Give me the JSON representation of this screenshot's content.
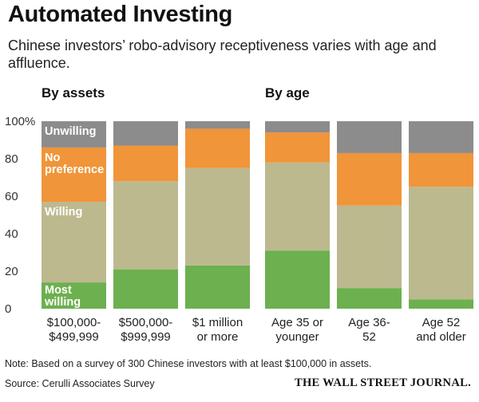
{
  "header": {
    "title": "Automated Investing",
    "subtitle": "Chinese investors’ robo-advisory receptiveness varies with age and affluence."
  },
  "panels": {
    "assets_title": "By assets",
    "age_title": "By age"
  },
  "footer": {
    "note": "Note: Based on a survey of 300 Chinese investors with at least $100,000 in assets.",
    "source": "Source: Cerulli Associates Survey",
    "brand": "THE WALL STREET JOURNAL."
  },
  "chart_data": {
    "type": "bar",
    "stacked": true,
    "ylim": [
      0,
      100
    ],
    "yticks": [
      "100%",
      "80",
      "60",
      "40",
      "20",
      "0"
    ],
    "ytick_values": [
      100,
      80,
      60,
      40,
      20,
      0
    ],
    "colors": {
      "Most willing": "#6cb04f",
      "Willing": "#bcb98f",
      "No preference": "#f0953a",
      "Unwilling": "#8c8c8c"
    },
    "segment_labels": [
      {
        "series": "Unwilling",
        "text": [
          "Unwilling"
        ],
        "color": "#ffffff"
      },
      {
        "series": "No preference",
        "text": [
          "No",
          "preference"
        ],
        "color": "#ffffff"
      },
      {
        "series": "Willing",
        "text": [
          "Willing"
        ],
        "color": "#ffffff"
      },
      {
        "series": "Most willing",
        "text": [
          "Most",
          "willing"
        ],
        "color": "#ffffff"
      }
    ],
    "groups": [
      {
        "name": "By assets",
        "categories": [
          [
            "$100,000-",
            "$499,999"
          ],
          [
            "$500,000-",
            "$999,999"
          ],
          [
            "$1 million",
            "or more"
          ]
        ],
        "series": [
          {
            "name": "Most willing",
            "values": [
              14,
              21,
              23
            ]
          },
          {
            "name": "Willing",
            "values": [
              43,
              47,
              52
            ]
          },
          {
            "name": "No preference",
            "values": [
              29,
              19,
              21
            ]
          },
          {
            "name": "Unwilling",
            "values": [
              14,
              13,
              4
            ]
          }
        ]
      },
      {
        "name": "By age",
        "categories": [
          [
            "Age 35 or",
            "younger"
          ],
          [
            "Age 36-",
            "52"
          ],
          [
            "Age 52",
            "and older"
          ]
        ],
        "series": [
          {
            "name": "Most willing",
            "values": [
              31,
              11,
              5
            ]
          },
          {
            "name": "Willing",
            "values": [
              47,
              44,
              60
            ]
          },
          {
            "name": "No preference",
            "values": [
              16,
              28,
              18
            ]
          },
          {
            "name": "Unwilling",
            "values": [
              6,
              17,
              17
            ]
          }
        ]
      }
    ]
  }
}
